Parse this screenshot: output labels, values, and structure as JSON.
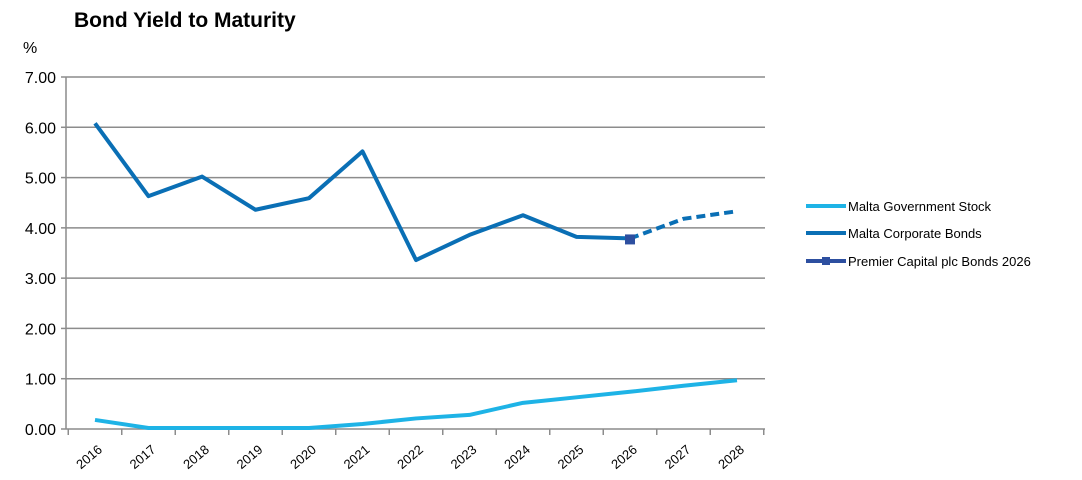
{
  "chart_data": {
    "type": "line",
    "title": "Bond Yield to Maturity",
    "ylabel": "%",
    "xlabel": "",
    "ylim": [
      0,
      7
    ],
    "yticks": [
      "0.00",
      "1.00",
      "2.00",
      "3.00",
      "4.00",
      "5.00",
      "6.00",
      "7.00"
    ],
    "categories": [
      "2016",
      "2017",
      "2018",
      "2019",
      "2020",
      "2021",
      "2022",
      "2023",
      "2024",
      "2025",
      "2026",
      "2027",
      "2028"
    ],
    "grid": "horizontal",
    "legend_position": "right",
    "series": [
      {
        "name": "Malta Government Stock",
        "color": "#1EB3E6",
        "style": "solid",
        "values": [
          0.18,
          0.02,
          0.02,
          0.02,
          0.02,
          0.1,
          0.21,
          0.28,
          0.52,
          0.63,
          0.74,
          0.86,
          0.97
        ]
      },
      {
        "name": "Malta Corporate Bonds",
        "color": "#0A6FB5",
        "style": "solid until 2026, dashed after",
        "values": [
          6.08,
          4.63,
          5.02,
          4.36,
          4.59,
          5.52,
          3.36,
          3.86,
          4.25,
          3.82,
          3.79,
          4.18,
          4.33
        ]
      },
      {
        "name": "Premier Capital plc Bonds 2026",
        "color": "#2D4FA0",
        "marker": "square",
        "points": [
          {
            "x": "2026",
            "y": 3.77
          }
        ]
      }
    ]
  }
}
